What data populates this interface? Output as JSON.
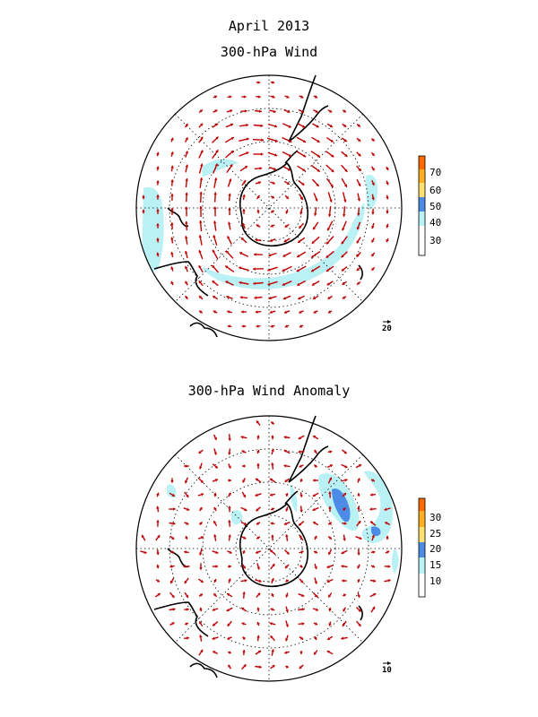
{
  "header": {
    "title": "April 2013"
  },
  "panels": [
    {
      "title": "300-hPa Wind",
      "colorbar_ticks": [
        "30",
        "40",
        "50",
        "60",
        "70"
      ],
      "colorbar_colors": [
        "#ffffff",
        "#b9f1f5",
        "#4c8ce6",
        "#ffe070",
        "#ffb020",
        "#ff6a00"
      ],
      "reference_vector": {
        "label": "20",
        "value": 20
      },
      "vector_color": "#c00000"
    },
    {
      "title": "300-hPa Wind Anomaly",
      "colorbar_ticks": [
        "10",
        "15",
        "20",
        "25",
        "30"
      ],
      "colorbar_colors": [
        "#ffffff",
        "#b9f1f5",
        "#4c8ce6",
        "#ffe070",
        "#ffb020",
        "#ff6a00"
      ],
      "reference_vector": {
        "label": "10",
        "value": 10
      },
      "vector_color": "#c00000"
    }
  ]
}
